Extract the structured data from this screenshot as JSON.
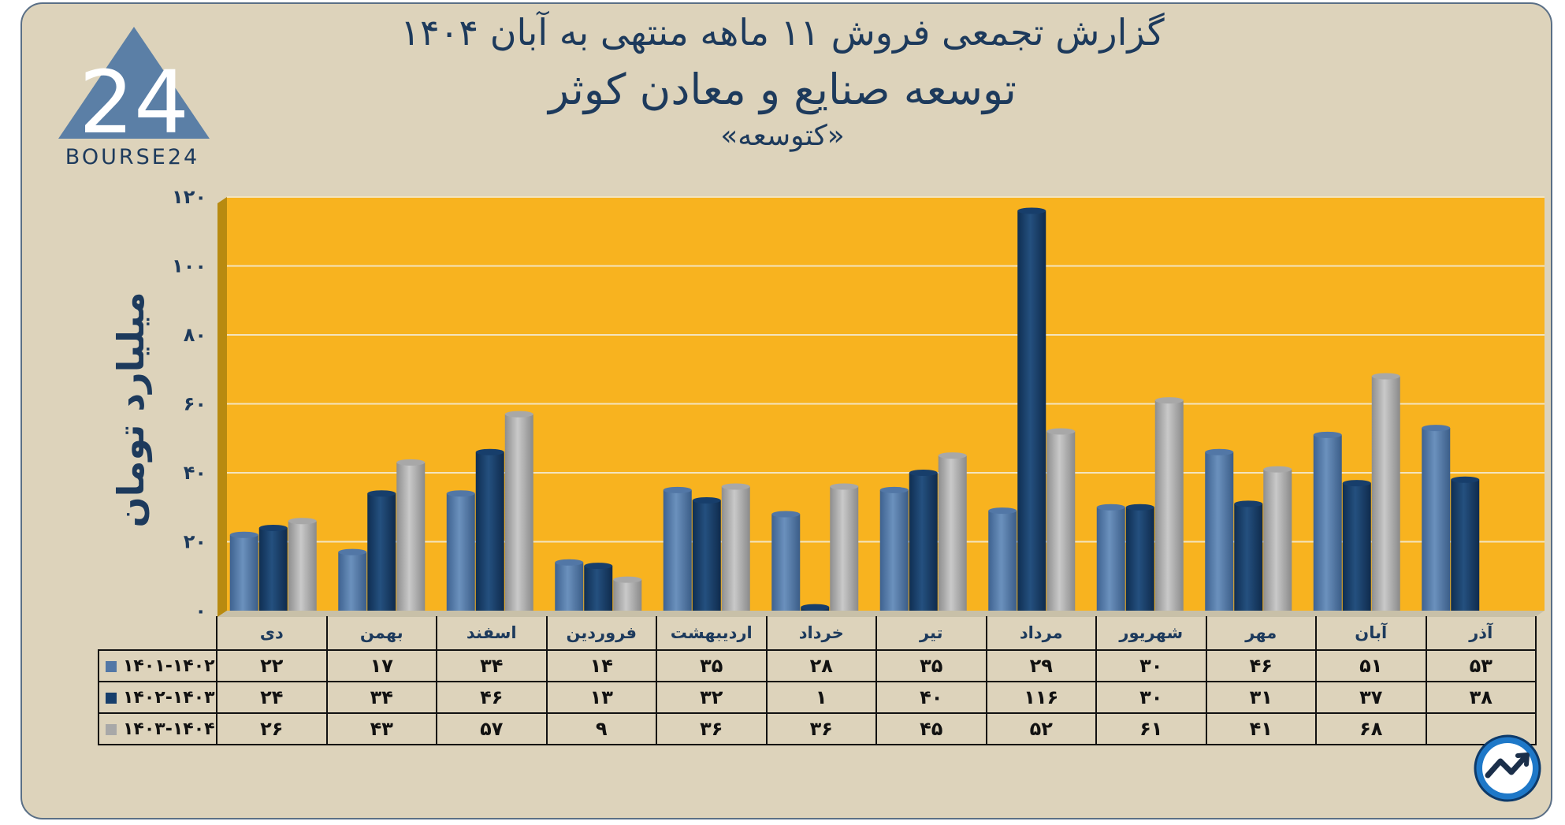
{
  "titles": {
    "line1": "گزارش تجمعی فروش ۱۱ ماهه منتهی به آبان ۱۴۰۴",
    "line2": "توسعه صنایع و معادن کوثر",
    "line3": "«کتوسعه»"
  },
  "logo": {
    "brand_text": "BOURSE24",
    "mark_text": "24"
  },
  "chart_data": {
    "type": "bar",
    "title": "گزارش تجمعی فروش ۱۱ ماهه منتهی به آبان ۱۴۰۴",
    "ylabel": "میلیارد تومان",
    "ylim": [
      0,
      120
    ],
    "yticks": [
      {
        "value": 0,
        "label": "۰"
      },
      {
        "value": 20,
        "label": "۲۰"
      },
      {
        "value": 40,
        "label": "۴۰"
      },
      {
        "value": 60,
        "label": "۶۰"
      },
      {
        "value": 80,
        "label": "۸۰"
      },
      {
        "value": 100,
        "label": "۱۰۰"
      },
      {
        "value": 120,
        "label": "۱۲۰"
      }
    ],
    "grid": true,
    "categories": [
      "دی",
      "بهمن",
      "اسفند",
      "فروردین",
      "اردیبهشت",
      "خرداد",
      "تیر",
      "مرداد",
      "شهریور",
      "مهر",
      "آبان",
      "آذر"
    ],
    "series": [
      {
        "name": "۱۴۰۱-۱۴۰۲",
        "values": [
          22,
          17,
          34,
          14,
          35,
          28,
          35,
          29,
          30,
          46,
          51,
          53
        ],
        "labels": [
          "۲۲",
          "۱۷",
          "۳۴",
          "۱۴",
          "۳۵",
          "۲۸",
          "۳۵",
          "۲۹",
          "۳۰",
          "۴۶",
          "۵۱",
          "۵۳"
        ],
        "color": "#5277a6"
      },
      {
        "name": "۱۴۰۲-۱۴۰۳",
        "values": [
          24,
          34,
          46,
          13,
          32,
          1,
          40,
          116,
          30,
          31,
          37,
          38
        ],
        "labels": [
          "۲۴",
          "۳۴",
          "۴۶",
          "۱۳",
          "۳۲",
          "۱",
          "۴۰",
          "۱۱۶",
          "۳۰",
          "۳۱",
          "۳۷",
          "۳۸"
        ],
        "color": "#173e6b"
      },
      {
        "name": "۱۴۰۳-۱۴۰۴",
        "values": [
          26,
          43,
          57,
          9,
          36,
          36,
          45,
          52,
          61,
          41,
          68,
          null
        ],
        "labels": [
          "۲۶",
          "۴۳",
          "۵۷",
          "۹",
          "۳۶",
          "۳۶",
          "۴۵",
          "۵۲",
          "۶۱",
          "۴۱",
          "۶۸",
          ""
        ],
        "color": "#a8a8a8"
      }
    ],
    "plot_background": "#f8b31f",
    "legend": "data-table-left"
  },
  "colors": {
    "card": "#ddd3bb",
    "title": "#1d3a5c",
    "plot": "#f8b31f"
  }
}
